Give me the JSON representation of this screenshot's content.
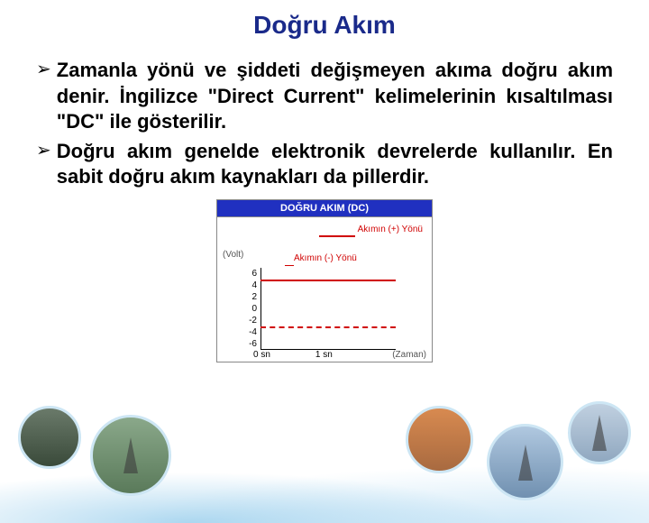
{
  "title": "Doğru Akım",
  "bullets": [
    "Zamanla yönü ve şiddeti değişmeyen akıma doğru akım denir. İngilizce \"Direct Current\" kelimelerinin kısaltılması \"DC\" ile gösterilir.",
    "Doğru akım genelde elektronik devrelerde kullanılır. En sabit doğru akım kaynakları da pillerdir."
  ],
  "chart": {
    "type": "line",
    "header": "DOĞRU AKIM (DC)",
    "y_axis_label": "(Volt)",
    "x_axis_label": "(Zaman)",
    "legend_pos": "Akımın (+) Yönü",
    "legend_neg": "Akımın (-) Yönü",
    "y_ticks": [
      "6",
      "4",
      "2",
      "0",
      "-2",
      "-4",
      "-6"
    ],
    "x_ticks": [
      "0 sn",
      "1 sn"
    ],
    "pos_line_value": 4,
    "neg_line_value": -4,
    "ylim": [
      -6,
      6
    ],
    "header_bg": "#2030c0",
    "header_color": "#ffffff",
    "line_color": "#d00000",
    "axis_color": "#000000",
    "background_color": "#ffffff",
    "label_color": "#555555",
    "title_fontsize": 11,
    "tick_fontsize": 10
  },
  "colors": {
    "title_color": "#1a2a8a",
    "text_color": "#000000",
    "slide_bg": "#ffffff"
  }
}
